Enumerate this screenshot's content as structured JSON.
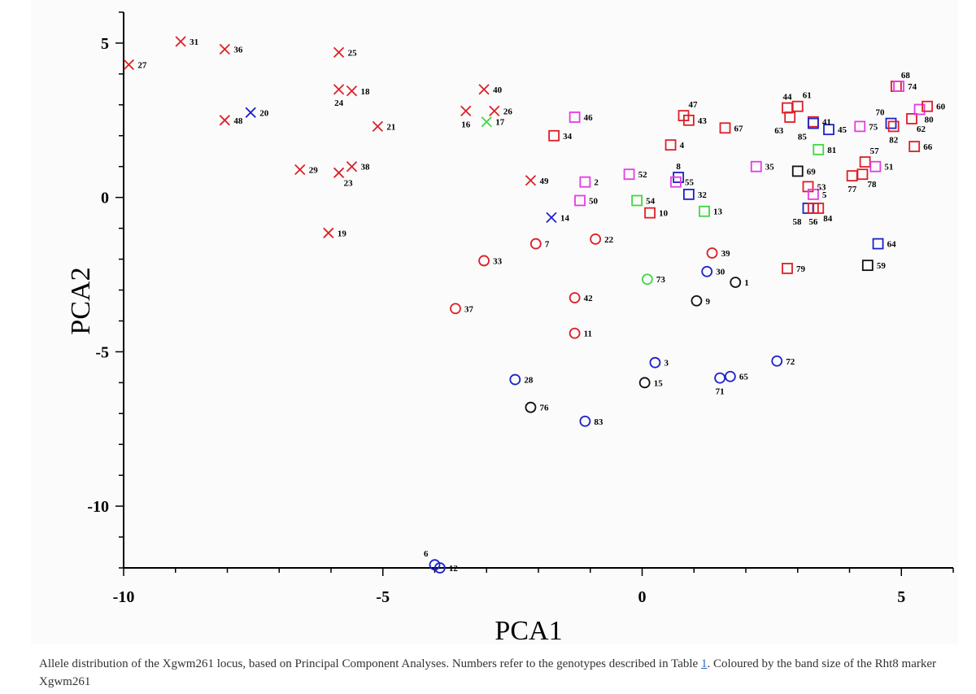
{
  "caption": {
    "before_link": "Allele distribution of the Xgwm261 locus, based on Principal Component Analyses. Numbers refer to the genotypes described in Table ",
    "link_text": "1",
    "after_link": ". Coloured by the band size of the Rht8 marker Xgwm261"
  },
  "colors": {
    "red": "#dd1f26",
    "blue": "#1c22c8",
    "green": "#3fd83f",
    "magenta": "#e63be6",
    "black": "#111111"
  },
  "chart_data": {
    "type": "scatter",
    "title": "",
    "xlabel": "PCA1",
    "ylabel": "PCA2",
    "xlim": [
      -10,
      6
    ],
    "ylim": [
      -12,
      6
    ],
    "xticks": [
      -10,
      -5,
      0,
      5
    ],
    "yticks": [
      5,
      0,
      -5,
      -10
    ],
    "grid": false,
    "points": [
      {
        "id": "27",
        "x": -9.9,
        "y": 4.3,
        "marker": "x",
        "color": "red",
        "label_pos": "right"
      },
      {
        "id": "31",
        "x": -8.9,
        "y": 5.05,
        "marker": "x",
        "color": "red",
        "label_pos": "right"
      },
      {
        "id": "36",
        "x": -8.05,
        "y": 4.8,
        "marker": "x",
        "color": "red",
        "label_pos": "right"
      },
      {
        "id": "25",
        "x": -5.85,
        "y": 4.7,
        "marker": "x",
        "color": "red",
        "label_pos": "right"
      },
      {
        "id": "20",
        "x": -7.55,
        "y": 2.75,
        "marker": "x",
        "color": "blue",
        "label_pos": "right"
      },
      {
        "id": "48",
        "x": -8.05,
        "y": 2.5,
        "marker": "x",
        "color": "red",
        "label_pos": "right"
      },
      {
        "id": "24",
        "x": -5.85,
        "y": 3.5,
        "marker": "x",
        "color": "red",
        "label_pos": "below"
      },
      {
        "id": "18",
        "x": -5.6,
        "y": 3.45,
        "marker": "x",
        "color": "red",
        "label_pos": "right"
      },
      {
        "id": "21",
        "x": -5.1,
        "y": 2.3,
        "marker": "x",
        "color": "red",
        "label_pos": "right"
      },
      {
        "id": "29",
        "x": -6.6,
        "y": 0.9,
        "marker": "x",
        "color": "red",
        "label_pos": "right"
      },
      {
        "id": "23",
        "x": -5.85,
        "y": 0.8,
        "marker": "x",
        "color": "red",
        "label_pos": "belowright"
      },
      {
        "id": "38",
        "x": -5.6,
        "y": 1.0,
        "marker": "x",
        "color": "red",
        "label_pos": "right"
      },
      {
        "id": "19",
        "x": -6.05,
        "y": -1.15,
        "marker": "x",
        "color": "red",
        "label_pos": "right"
      },
      {
        "id": "40",
        "x": -3.05,
        "y": 3.5,
        "marker": "x",
        "color": "red",
        "label_pos": "right"
      },
      {
        "id": "16",
        "x": -3.4,
        "y": 2.8,
        "marker": "x",
        "color": "red",
        "label_pos": "below"
      },
      {
        "id": "26",
        "x": -2.85,
        "y": 2.8,
        "marker": "x",
        "color": "red",
        "label_pos": "right"
      },
      {
        "id": "17",
        "x": -3.0,
        "y": 2.45,
        "marker": "x",
        "color": "green",
        "label_pos": "right"
      },
      {
        "id": "49",
        "x": -2.15,
        "y": 0.55,
        "marker": "x",
        "color": "red",
        "label_pos": "right"
      },
      {
        "id": "14",
        "x": -1.75,
        "y": -0.65,
        "marker": "x",
        "color": "blue",
        "label_pos": "right"
      },
      {
        "id": "34",
        "x": -1.7,
        "y": 2.0,
        "marker": "square",
        "color": "red",
        "label_pos": "right"
      },
      {
        "id": "46",
        "x": -1.3,
        "y": 2.6,
        "marker": "square",
        "color": "magenta",
        "label_pos": "right"
      },
      {
        "id": "2",
        "x": -1.1,
        "y": 0.5,
        "marker": "square",
        "color": "magenta",
        "label_pos": "right"
      },
      {
        "id": "50",
        "x": -1.2,
        "y": -0.1,
        "marker": "square",
        "color": "magenta",
        "label_pos": "right"
      },
      {
        "id": "52",
        "x": -0.25,
        "y": 0.75,
        "marker": "square",
        "color": "magenta",
        "label_pos": "right"
      },
      {
        "id": "54",
        "x": -0.1,
        "y": -0.1,
        "marker": "square",
        "color": "green",
        "label_pos": "right"
      },
      {
        "id": "10",
        "x": 0.15,
        "y": -0.5,
        "marker": "square",
        "color": "red",
        "label_pos": "right"
      },
      {
        "id": "4",
        "x": 0.55,
        "y": 1.7,
        "marker": "square",
        "color": "red",
        "label_pos": "right"
      },
      {
        "id": "47",
        "x": 0.8,
        "y": 2.65,
        "marker": "square",
        "color": "red",
        "label_pos": "aboveright"
      },
      {
        "id": "43",
        "x": 0.9,
        "y": 2.5,
        "marker": "square",
        "color": "red",
        "label_pos": "right"
      },
      {
        "id": "8",
        "x": 0.7,
        "y": 0.65,
        "marker": "square",
        "color": "blue",
        "label_pos": "above"
      },
      {
        "id": "55",
        "x": 0.65,
        "y": 0.5,
        "marker": "square",
        "color": "magenta",
        "label_pos": "right"
      },
      {
        "id": "32",
        "x": 0.9,
        "y": 0.1,
        "marker": "square",
        "color": "blue",
        "label_pos": "right"
      },
      {
        "id": "13",
        "x": 1.2,
        "y": -0.45,
        "marker": "square",
        "color": "green",
        "label_pos": "right"
      },
      {
        "id": "67",
        "x": 1.6,
        "y": 2.25,
        "marker": "square",
        "color": "red",
        "label_pos": "right"
      },
      {
        "id": "35",
        "x": 2.2,
        "y": 1.0,
        "marker": "square",
        "color": "magenta",
        "label_pos": "right"
      },
      {
        "id": "44",
        "x": 2.8,
        "y": 2.9,
        "marker": "square",
        "color": "red",
        "label_pos": "above"
      },
      {
        "id": "61",
        "x": 3.0,
        "y": 2.95,
        "marker": "square",
        "color": "red",
        "label_pos": "aboveright"
      },
      {
        "id": "63",
        "x": 2.85,
        "y": 2.6,
        "marker": "square",
        "color": "red",
        "label_pos": "belowleft"
      },
      {
        "id": "41",
        "x": 3.3,
        "y": 2.45,
        "marker": "square",
        "color": "red",
        "label_pos": "right"
      },
      {
        "id": "85",
        "x": 3.3,
        "y": 2.4,
        "marker": "square",
        "color": "blue",
        "label_pos": "belowleft"
      },
      {
        "id": "45",
        "x": 3.6,
        "y": 2.2,
        "marker": "square",
        "color": "blue",
        "label_pos": "right"
      },
      {
        "id": "81",
        "x": 3.4,
        "y": 1.55,
        "marker": "square",
        "color": "green",
        "label_pos": "right"
      },
      {
        "id": "69",
        "x": 3.0,
        "y": 0.85,
        "marker": "square",
        "color": "black",
        "label_pos": "right"
      },
      {
        "id": "53",
        "x": 3.2,
        "y": 0.35,
        "marker": "square",
        "color": "red",
        "label_pos": "right"
      },
      {
        "id": "5",
        "x": 3.3,
        "y": 0.1,
        "marker": "square",
        "color": "magenta",
        "label_pos": "right"
      },
      {
        "id": "58",
        "x": 3.2,
        "y": -0.35,
        "marker": "square",
        "color": "blue",
        "label_pos": "belowleft"
      },
      {
        "id": "56",
        "x": 3.3,
        "y": -0.35,
        "marker": "square",
        "color": "red",
        "label_pos": "below"
      },
      {
        "id": "84",
        "x": 3.4,
        "y": -0.35,
        "marker": "square",
        "color": "red",
        "label_pos": "belowright"
      },
      {
        "id": "79",
        "x": 2.8,
        "y": -2.3,
        "marker": "square",
        "color": "red",
        "label_pos": "right"
      },
      {
        "id": "75",
        "x": 4.2,
        "y": 2.3,
        "marker": "square",
        "color": "magenta",
        "label_pos": "right"
      },
      {
        "id": "57",
        "x": 4.3,
        "y": 1.15,
        "marker": "square",
        "color": "red",
        "label_pos": "aboveright"
      },
      {
        "id": "51",
        "x": 4.5,
        "y": 1.0,
        "marker": "square",
        "color": "magenta",
        "label_pos": "right"
      },
      {
        "id": "77",
        "x": 4.05,
        "y": 0.7,
        "marker": "square",
        "color": "red",
        "label_pos": "below"
      },
      {
        "id": "78",
        "x": 4.25,
        "y": 0.75,
        "marker": "square",
        "color": "red",
        "label_pos": "belowright"
      },
      {
        "id": "64",
        "x": 4.55,
        "y": -1.5,
        "marker": "square",
        "color": "blue",
        "label_pos": "right"
      },
      {
        "id": "59",
        "x": 4.35,
        "y": -2.2,
        "marker": "square",
        "color": "black",
        "label_pos": "right"
      },
      {
        "id": "70",
        "x": 4.8,
        "y": 2.4,
        "marker": "square",
        "color": "blue",
        "label_pos": "aboveleft"
      },
      {
        "id": "82",
        "x": 4.85,
        "y": 2.3,
        "marker": "square",
        "color": "red",
        "label_pos": "below"
      },
      {
        "id": "68",
        "x": 4.9,
        "y": 3.6,
        "marker": "square",
        "color": "red",
        "label_pos": "aboveright"
      },
      {
        "id": "74",
        "x": 4.95,
        "y": 3.6,
        "marker": "square",
        "color": "magenta",
        "label_pos": "right"
      },
      {
        "id": "62",
        "x": 5.2,
        "y": 2.55,
        "marker": "square",
        "color": "red",
        "label_pos": "belowright"
      },
      {
        "id": "80",
        "x": 5.35,
        "y": 2.85,
        "marker": "square",
        "color": "magenta",
        "label_pos": "belowright"
      },
      {
        "id": "60",
        "x": 5.5,
        "y": 2.95,
        "marker": "square",
        "color": "red",
        "label_pos": "right"
      },
      {
        "id": "66",
        "x": 5.25,
        "y": 1.65,
        "marker": "square",
        "color": "red",
        "label_pos": "right"
      },
      {
        "id": "7",
        "x": -2.05,
        "y": -1.5,
        "marker": "circle",
        "color": "red",
        "label_pos": "right"
      },
      {
        "id": "22",
        "x": -0.9,
        "y": -1.35,
        "marker": "circle",
        "color": "red",
        "label_pos": "right"
      },
      {
        "id": "33",
        "x": -3.05,
        "y": -2.05,
        "marker": "circle",
        "color": "red",
        "label_pos": "right"
      },
      {
        "id": "37",
        "x": -3.6,
        "y": -3.6,
        "marker": "circle",
        "color": "red",
        "label_pos": "right"
      },
      {
        "id": "42",
        "x": -1.3,
        "y": -3.25,
        "marker": "circle",
        "color": "red",
        "label_pos": "right"
      },
      {
        "id": "11",
        "x": -1.3,
        "y": -4.4,
        "marker": "circle",
        "color": "red",
        "label_pos": "right"
      },
      {
        "id": "73",
        "x": 0.1,
        "y": -2.65,
        "marker": "circle",
        "color": "green",
        "label_pos": "right"
      },
      {
        "id": "39",
        "x": 1.35,
        "y": -1.8,
        "marker": "circle",
        "color": "red",
        "label_pos": "right"
      },
      {
        "id": "30",
        "x": 1.25,
        "y": -2.4,
        "marker": "circle",
        "color": "blue",
        "label_pos": "right"
      },
      {
        "id": "1",
        "x": 1.8,
        "y": -2.75,
        "marker": "circle",
        "color": "black",
        "label_pos": "right"
      },
      {
        "id": "9",
        "x": 1.05,
        "y": -3.35,
        "marker": "circle",
        "color": "black",
        "label_pos": "right"
      },
      {
        "id": "3",
        "x": 0.25,
        "y": -5.35,
        "marker": "circle",
        "color": "blue",
        "label_pos": "right"
      },
      {
        "id": "15",
        "x": 0.05,
        "y": -6.0,
        "marker": "circle",
        "color": "black",
        "label_pos": "right"
      },
      {
        "id": "71",
        "x": 1.5,
        "y": -5.85,
        "marker": "circle",
        "color": "blue",
        "label_pos": "below"
      },
      {
        "id": "65",
        "x": 1.7,
        "y": -5.8,
        "marker": "circle",
        "color": "blue",
        "label_pos": "right"
      },
      {
        "id": "72",
        "x": 2.6,
        "y": -5.3,
        "marker": "circle",
        "color": "blue",
        "label_pos": "right"
      },
      {
        "id": "28",
        "x": -2.45,
        "y": -5.9,
        "marker": "circle",
        "color": "blue",
        "label_pos": "right"
      },
      {
        "id": "76",
        "x": -2.15,
        "y": -6.8,
        "marker": "circle",
        "color": "black",
        "label_pos": "right"
      },
      {
        "id": "83",
        "x": -1.1,
        "y": -7.25,
        "marker": "circle",
        "color": "blue",
        "label_pos": "right"
      },
      {
        "id": "6",
        "x": -4.0,
        "y": -11.9,
        "marker": "circle",
        "color": "blue",
        "label_pos": "aboveleft"
      },
      {
        "id": "12",
        "x": -3.9,
        "y": -12.0,
        "marker": "circle",
        "color": "blue",
        "label_pos": "right"
      }
    ]
  }
}
